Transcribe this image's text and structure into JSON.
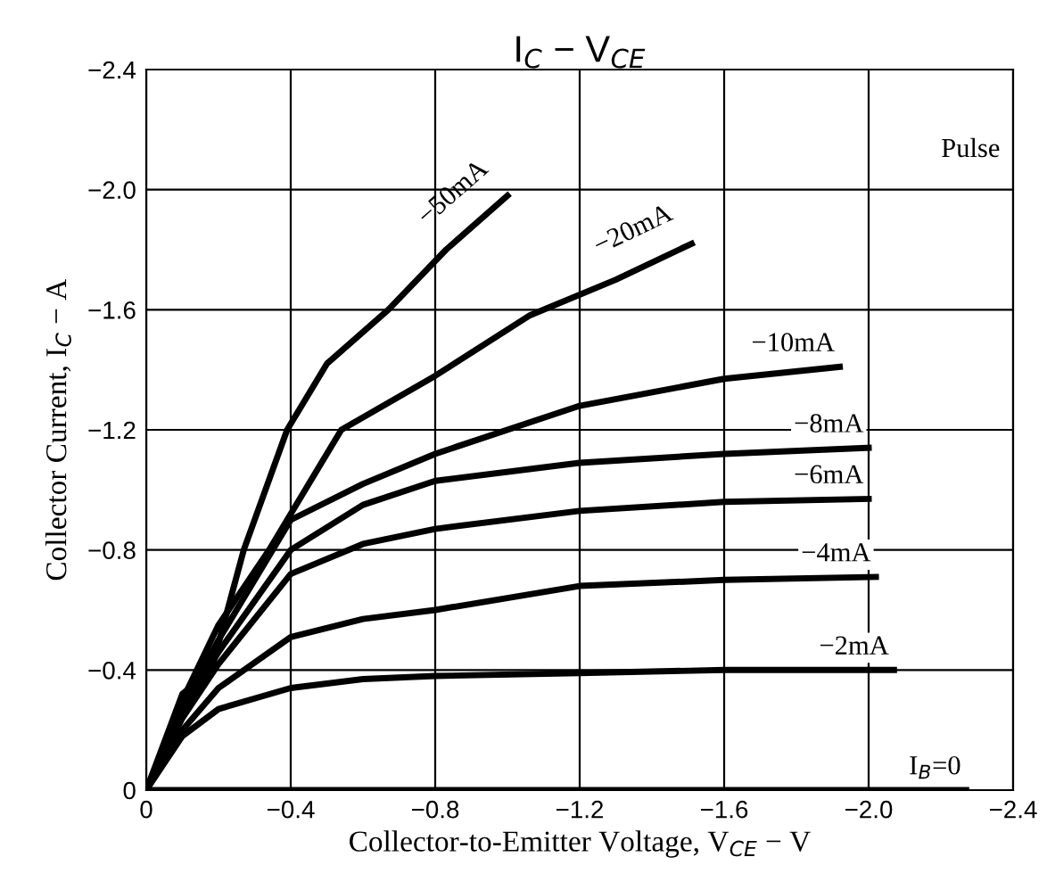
{
  "chart_data": {
    "type": "line",
    "title": "I$_{C}$ − V$_{CE}$",
    "xlabel": "Collector-to-Emitter Voltage, V$_{CE}$ − V",
    "ylabel": "Collector Current, I$_{C}$ − A",
    "xlim": [
      0,
      -2.4
    ],
    "ylim": [
      0,
      -2.4
    ],
    "xticks": [
      0,
      {
        "value": -0.4,
        "label": "−0.4"
      },
      {
        "value": -0.8,
        "label": "−0.8"
      },
      {
        "value": -1.2,
        "label": "−1.2"
      },
      {
        "value": -1.6,
        "label": "−1.6"
      },
      {
        "value": -2.0,
        "label": "−2.0"
      },
      {
        "value": -2.4,
        "label": "−2.4"
      }
    ],
    "yticks": [
      0,
      {
        "value": -0.4,
        "label": "−0.4"
      },
      {
        "value": -0.8,
        "label": "−0.8"
      },
      {
        "value": -1.2,
        "label": "−1.2"
      },
      {
        "value": -1.6,
        "label": "−1.6"
      },
      {
        "value": -2.0,
        "label": "−2.0"
      },
      {
        "value": -2.4,
        "label": "−2.4"
      }
    ],
    "grid": true,
    "legend": false,
    "marker": "none",
    "line_style": "solid",
    "annotations": [
      "Pulse"
    ],
    "series": [
      {
        "name": "−50mA",
        "color": "#000000",
        "x": [
          0,
          -0.1,
          -0.18,
          -0.27,
          -0.39,
          -0.5,
          -0.67,
          -0.83,
          -1.0
        ],
        "values": [
          0,
          -0.32,
          -0.4,
          -0.8,
          -1.2,
          -1.42,
          -1.6,
          -1.8,
          -1.98
        ]
      },
      {
        "name": "−20mA",
        "color": "#000000",
        "x": [
          0,
          -0.1,
          -0.2,
          -0.34,
          -0.54,
          -0.8,
          -1.06,
          -1.3,
          -1.51
        ],
        "values": [
          0,
          -0.3,
          -0.55,
          -0.8,
          -1.2,
          -1.38,
          -1.58,
          -1.7,
          -1.82
        ]
      },
      {
        "name": "−10mA",
        "color": "#000000",
        "x": [
          0,
          -0.1,
          -0.2,
          -0.4,
          -0.6,
          -0.8,
          -1.2,
          -1.6,
          -1.92
        ],
        "values": [
          0,
          -0.28,
          -0.5,
          -0.9,
          -1.02,
          -1.12,
          -1.28,
          -1.37,
          -1.41
        ]
      },
      {
        "name": "−8mA",
        "color": "#000000",
        "x": [
          0,
          -0.1,
          -0.2,
          -0.4,
          -0.6,
          -0.8,
          -1.2,
          -1.6,
          -2.0
        ],
        "values": [
          0,
          -0.26,
          -0.46,
          -0.8,
          -0.95,
          -1.03,
          -1.09,
          -1.12,
          -1.14
        ]
      },
      {
        "name": "−6mA",
        "color": "#000000",
        "x": [
          0,
          -0.1,
          -0.2,
          -0.4,
          -0.6,
          -0.8,
          -1.2,
          -1.6,
          -2.0
        ],
        "values": [
          0,
          -0.24,
          -0.42,
          -0.72,
          -0.82,
          -0.87,
          -0.93,
          -0.96,
          -0.97
        ]
      },
      {
        "name": "−4mA",
        "color": "#000000",
        "x": [
          0,
          -0.1,
          -0.2,
          -0.4,
          -0.6,
          -0.8,
          -1.2,
          -1.6,
          -2.02
        ],
        "values": [
          0,
          -0.2,
          -0.34,
          -0.51,
          -0.57,
          -0.6,
          -0.68,
          -0.7,
          -0.71
        ]
      },
      {
        "name": "−2mA",
        "color": "#000000",
        "x": [
          0,
          -0.1,
          -0.2,
          -0.4,
          -0.6,
          -0.8,
          -1.2,
          -1.6,
          -2.07
        ],
        "values": [
          0,
          -0.18,
          -0.27,
          -0.34,
          -0.37,
          -0.38,
          -0.39,
          -0.4,
          -0.4
        ]
      },
      {
        "name": "I$_{B}$=0",
        "color": "#000000",
        "x": [
          0,
          -2.27
        ],
        "values": [
          0,
          0
        ]
      }
    ]
  }
}
